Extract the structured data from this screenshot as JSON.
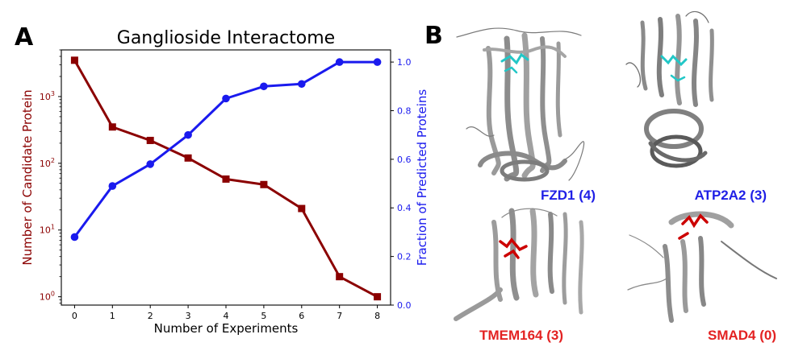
{
  "panel_a": {
    "letter": "A"
  },
  "panel_b": {
    "letter": "B"
  },
  "colors": {
    "candidates": "#8b0000",
    "fraction": "#1a1aee",
    "blue_label": "#1f1fe6",
    "red_label": "#e32222",
    "ligand_cyan": "#22c7c7",
    "ligand_red": "#cc0000",
    "protein_gray": "#8a8a8a"
  },
  "chart_data": {
    "type": "line",
    "title": "Ganglioside Interactome",
    "xlabel": "Number of Experiments",
    "x": [
      0,
      1,
      2,
      3,
      4,
      5,
      6,
      7,
      8
    ],
    "x_ticks": [
      "0",
      "1",
      "2",
      "3",
      "4",
      "5",
      "6",
      "7",
      "8"
    ],
    "xlim": [
      -0.35,
      8.35
    ],
    "y_left": {
      "label": "Number of Candidate Protein",
      "scale": "log",
      "lim": [
        0.75,
        5000
      ],
      "ticks": [
        {
          "value": 1,
          "base": "10",
          "exp": "0"
        },
        {
          "value": 10,
          "base": "10",
          "exp": "1"
        },
        {
          "value": 100,
          "base": "10",
          "exp": "2"
        },
        {
          "value": 1000,
          "base": "10",
          "exp": "3"
        }
      ]
    },
    "y_right": {
      "label": "Fraction of Predicted Proteins",
      "scale": "linear",
      "lim": [
        0,
        1.05
      ],
      "ticks": [
        "0.0",
        "0.2",
        "0.4",
        "0.6",
        "0.8",
        "1.0"
      ]
    },
    "series": [
      {
        "axis": "left",
        "marker": "square",
        "values": [
          3500,
          350,
          220,
          120,
          58,
          48,
          21,
          2,
          1
        ]
      },
      {
        "axis": "right",
        "marker": "circle",
        "values": [
          0.28,
          0.49,
          0.58,
          0.7,
          0.85,
          0.9,
          0.91,
          1.0,
          1.0
        ]
      }
    ],
    "grid": false
  },
  "structures": [
    {
      "id": "fzd1",
      "label": "FZD1 (4)",
      "color": "#1f1fe6",
      "ligand": "cyan"
    },
    {
      "id": "atp2a2",
      "label": "ATP2A2 (3)",
      "color": "#1f1fe6",
      "ligand": "cyan"
    },
    {
      "id": "tmem164",
      "label": "TMEM164 (3)",
      "color": "#e32222",
      "ligand": "red"
    },
    {
      "id": "smad4",
      "label": "SMAD4 (0)",
      "color": "#e32222",
      "ligand": "red"
    }
  ]
}
